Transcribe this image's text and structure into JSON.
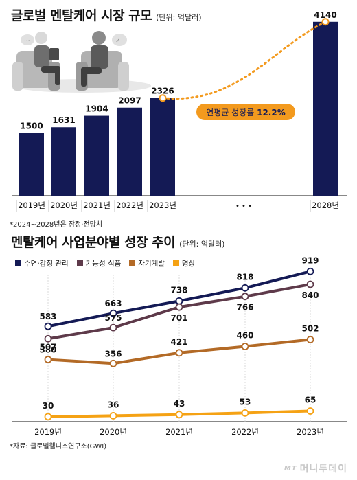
{
  "chart_data": [
    {
      "type": "bar",
      "title": "글로벌 멘탈케어 시장 규모",
      "unit": "(단위: 억달러)",
      "categories": [
        "2019년",
        "2020년",
        "2021년",
        "2022년",
        "2023년",
        "2028년"
      ],
      "values": [
        1500,
        1631,
        1904,
        2097,
        2326,
        4140
      ],
      "ellipsis_label": "• • •",
      "growth_label_prefix": "연평균 성장률 ",
      "growth_label_value": "12.2%",
      "note": "*2024~2028년은 잠정·전망치",
      "colors": {
        "bar": "#141a55",
        "trend": "#f39a1e",
        "badge_bg": "#f39a1e",
        "badge_text": "#141a55"
      },
      "ylim": [
        0,
        4300
      ]
    },
    {
      "type": "line",
      "title": "멘탈케어 사업분야별 성장 추이",
      "unit": "(단위: 억달러)",
      "x": [
        "2019년",
        "2020년",
        "2021년",
        "2022년",
        "2023년"
      ],
      "series": [
        {
          "name": "수면·감정 관리",
          "color": "#141a55",
          "values": [
            583,
            663,
            738,
            818,
            919
          ]
        },
        {
          "name": "기능성 식품",
          "color": "#5e3a4a",
          "values": [
            507,
            575,
            701,
            766,
            840
          ]
        },
        {
          "name": "자기계발",
          "color": "#b36a26",
          "values": [
            380,
            356,
            421,
            460,
            502
          ]
        },
        {
          "name": "명상",
          "color": "#f5a214",
          "values": [
            30,
            36,
            43,
            53,
            65
          ]
        }
      ],
      "ylim": [
        0,
        1000
      ],
      "source": "*자료: 글로벌웰니스연구소(GWI)"
    }
  ],
  "logo": {
    "mt": "MT",
    "name": "머니투데이"
  }
}
